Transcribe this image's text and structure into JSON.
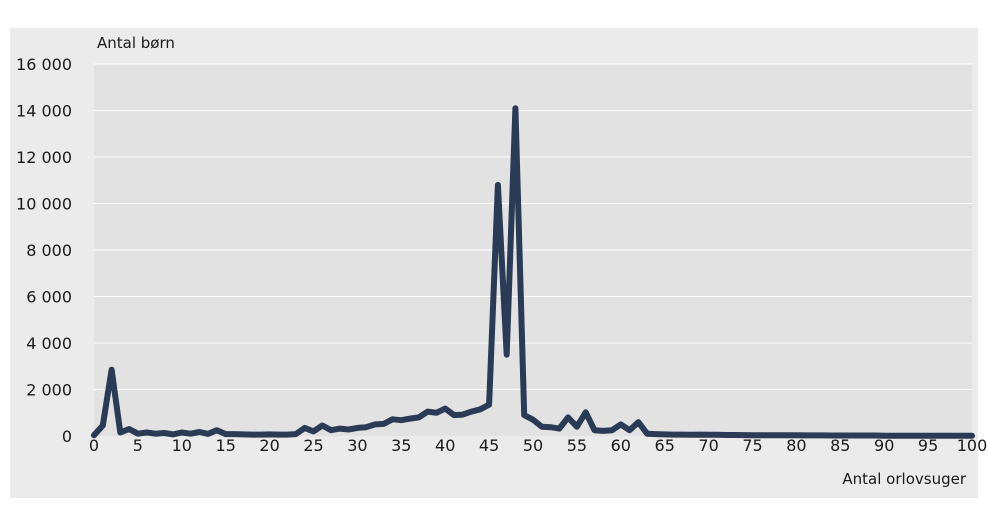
{
  "chart_data": {
    "type": "line",
    "title": "",
    "ylabel": "Antal børn",
    "xlabel": "Antal orlovsuger",
    "xlim": [
      0,
      100
    ],
    "ylim": [
      0,
      16000
    ],
    "x_ticks": [
      0,
      5,
      10,
      15,
      20,
      25,
      30,
      35,
      40,
      45,
      50,
      55,
      60,
      65,
      70,
      75,
      80,
      85,
      90,
      95,
      100
    ],
    "y_ticks": [
      0,
      2000,
      4000,
      6000,
      8000,
      10000,
      12000,
      14000,
      16000
    ],
    "x_tick_labels": [
      "0",
      "5",
      "10",
      "15",
      "20",
      "25",
      "30",
      "35",
      "40",
      "45",
      "50",
      "55",
      "60",
      "65",
      "70",
      "75",
      "80",
      "85",
      "90",
      "95",
      "100"
    ],
    "y_tick_labels": [
      "0",
      "2 000",
      "4 000",
      "6 000",
      "8 000",
      "10 000",
      "12 000",
      "14 000",
      "16 000"
    ],
    "grid": true,
    "legend": "none",
    "colors": {
      "line": "#2b3a55",
      "plot_bg": "#e2e2e2",
      "grid": "#ffffff",
      "outer_bg": "#ebebeb"
    },
    "series": [
      {
        "x": [
          0,
          1,
          2,
          3,
          4,
          5,
          6,
          7,
          8,
          9,
          10,
          11,
          12,
          13,
          14,
          15,
          16,
          17,
          18,
          19,
          20,
          21,
          22,
          23,
          24,
          25,
          26,
          27,
          28,
          29,
          30,
          31,
          32,
          33,
          34,
          35,
          36,
          37,
          38,
          39,
          40,
          41,
          42,
          43,
          44,
          45,
          46,
          47,
          48,
          49,
          50,
          51,
          52,
          53,
          54,
          55,
          56,
          57,
          58,
          59,
          60,
          61,
          62,
          63,
          64,
          65,
          66,
          67,
          68,
          69,
          70,
          71,
          72,
          73,
          74,
          75,
          76,
          77,
          78,
          79,
          80,
          81,
          82,
          83,
          84,
          85,
          86,
          87,
          88,
          89,
          90,
          91,
          92,
          93,
          94,
          95,
          96,
          97,
          98,
          99,
          100
        ],
        "values": [
          30,
          450,
          2850,
          150,
          300,
          100,
          150,
          100,
          130,
          70,
          150,
          100,
          170,
          90,
          250,
          80,
          80,
          70,
          60,
          60,
          70,
          60,
          60,
          80,
          350,
          200,
          450,
          250,
          320,
          280,
          350,
          380,
          500,
          520,
          720,
          680,
          750,
          800,
          1050,
          1000,
          1180,
          900,
          920,
          1050,
          1150,
          1350,
          10800,
          3500,
          14100,
          900,
          700,
          400,
          380,
          320,
          800,
          400,
          1020,
          250,
          220,
          250,
          500,
          250,
          600,
          100,
          80,
          70,
          60,
          60,
          50,
          60,
          50,
          50,
          45,
          45,
          40,
          35,
          35,
          30,
          30,
          30,
          30,
          25,
          25,
          25,
          20,
          20,
          20,
          20,
          20,
          20,
          15,
          15,
          15,
          15,
          15,
          15,
          12,
          12,
          10,
          10,
          10
        ]
      }
    ]
  }
}
